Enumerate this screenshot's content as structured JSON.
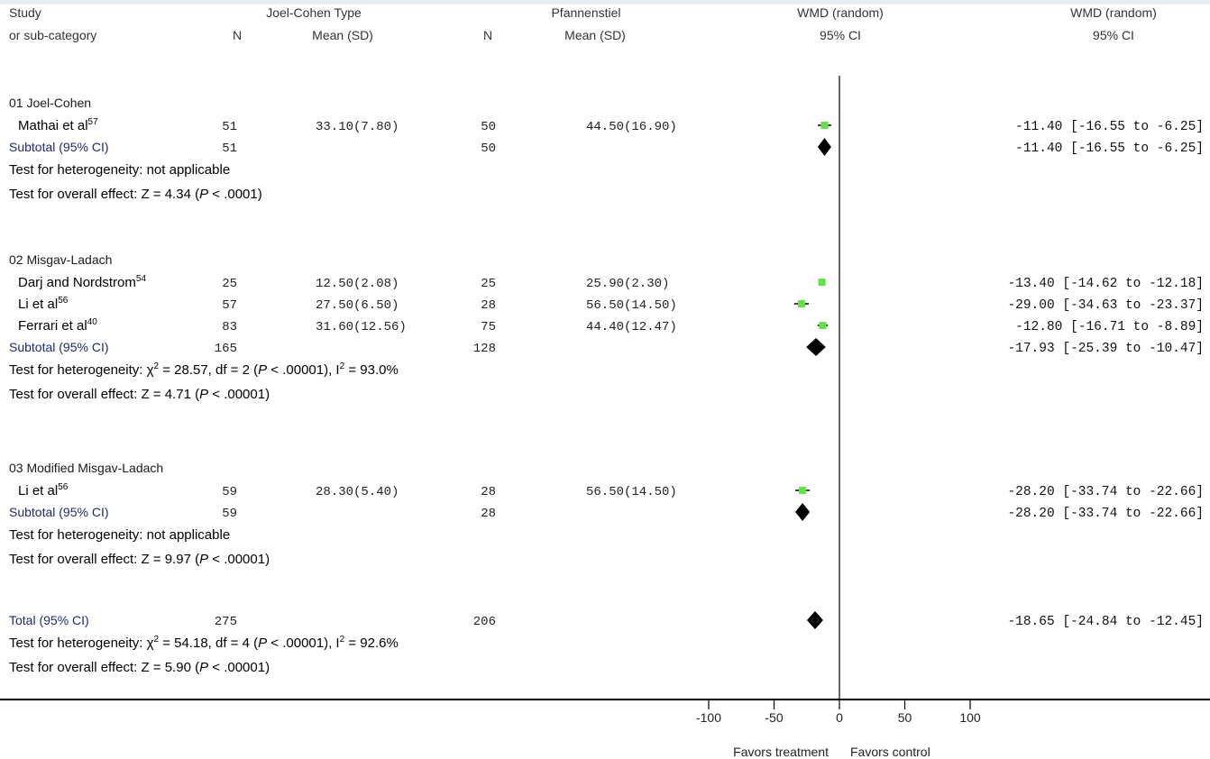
{
  "chart_data": {
    "type": "forest",
    "header": {
      "study_line1": "Study",
      "study_line2": "or sub-category",
      "group1_name": "Joel-Cohen Type",
      "group2_name": "Pfannenstiel",
      "n_label": "N",
      "mean_label": "Mean (SD)",
      "plot_title": "WMD (random)",
      "ci_label": "95% CI",
      "result_title": "WMD (random)",
      "result_ci_label": "95% CI"
    },
    "subgroups": [
      {
        "name": "01 Joel-Cohen",
        "studies": [
          {
            "name": "Mathai et al",
            "ref": "57",
            "n1": "51",
            "mean1": "33.10(7.80)",
            "n2": "50",
            "mean2": "44.50(16.90)",
            "wmd": -11.4,
            "lo": -16.55,
            "hi": -6.25,
            "ci_text": "-11.40 [-16.55 to -6.25]"
          }
        ],
        "subtotal": {
          "label": "Subtotal (95% CI)",
          "n1": "51",
          "n2": "50",
          "wmd": -11.4,
          "lo": -16.55,
          "hi": -6.25,
          "ci_text": "-11.40 [-16.55 to -6.25]"
        },
        "heterogeneity": {
          "prefix": "Test for heterogeneity: not applicable",
          "chi2": "",
          "df": "",
          "p": "",
          "i2": ""
        },
        "overall": {
          "z": "4.34",
          "p": "< .0001"
        }
      },
      {
        "name": "02 Misgav-Ladach",
        "studies": [
          {
            "name": "Darj and Nordstrom",
            "ref": "54",
            "n1": "25",
            "mean1": "12.50(2.08)",
            "n2": "25",
            "mean2": "25.90(2.30)",
            "wmd": -13.4,
            "lo": -14.62,
            "hi": -12.18,
            "ci_text": "-13.40 [-14.62 to -12.18]"
          },
          {
            "name": "Li et al",
            "ref": "56",
            "n1": "57",
            "mean1": "27.50(6.50)",
            "n2": "28",
            "mean2": "56.50(14.50)",
            "wmd": -29.0,
            "lo": -34.63,
            "hi": -23.37,
            "ci_text": "-29.00 [-34.63 to -23.37]"
          },
          {
            "name": "Ferrari et al",
            "ref": "40",
            "n1": "83",
            "mean1": "31.60(12.56)",
            "n2": "75",
            "mean2": "44.40(12.47)",
            "wmd": -12.8,
            "lo": -16.71,
            "hi": -8.89,
            "ci_text": "-12.80 [-16.71 to -8.89]"
          }
        ],
        "subtotal": {
          "label": "Subtotal (95% CI)",
          "n1": "165",
          "n2": "128",
          "wmd": -17.93,
          "lo": -25.39,
          "hi": -10.47,
          "ci_text": "-17.93 [-25.39 to -10.47]"
        },
        "heterogeneity": {
          "prefix": "Test for heterogeneity:",
          "chi2": "28.57",
          "df": "2",
          "p": "< .00001",
          "i2": "93.0%"
        },
        "overall": {
          "z": "4.71",
          "p": "< .00001"
        }
      },
      {
        "name": "03 Modified Misgav-Ladach",
        "studies": [
          {
            "name": "Li et al",
            "ref": "56",
            "n1": "59",
            "mean1": "28.30(5.40)",
            "n2": "28",
            "mean2": "56.50(14.50)",
            "wmd": -28.2,
            "lo": -33.74,
            "hi": -22.66,
            "ci_text": "-28.20 [-33.74 to -22.66]"
          }
        ],
        "subtotal": {
          "label": "Subtotal (95% CI)",
          "n1": "59",
          "n2": "28",
          "wmd": -28.2,
          "lo": -33.74,
          "hi": -22.66,
          "ci_text": "-28.20 [-33.74 to -22.66]"
        },
        "heterogeneity": {
          "prefix": "Test for heterogeneity: not applicable",
          "chi2": "",
          "df": "",
          "p": "",
          "i2": ""
        },
        "overall": {
          "z": "9.97",
          "p": "< .00001"
        }
      }
    ],
    "total": {
      "label": "Total (95% CI)",
      "n1": "275",
      "n2": "206",
      "wmd": -18.65,
      "lo": -24.84,
      "hi": -12.45,
      "ci_text": "-18.65 [-24.84 to -12.45]",
      "heterogeneity": {
        "prefix": "Test for heterogeneity:",
        "chi2": "54.18",
        "df": "4",
        "p": "< .00001",
        "i2": "92.6%"
      },
      "overall": {
        "z": "5.90",
        "p": "< .00001"
      }
    },
    "axis": {
      "min": -100,
      "max": 100,
      "ticks": [
        -100,
        -50,
        0,
        50,
        100
      ]
    },
    "favors_left": "Favors treatment",
    "favors_right": "Favors control",
    "colors": {
      "study_box": "#66e04a",
      "diamond": "#000000",
      "line": "#000000",
      "header_band": "#e6ecef",
      "subcategory_text": "#1f2a6b"
    }
  }
}
